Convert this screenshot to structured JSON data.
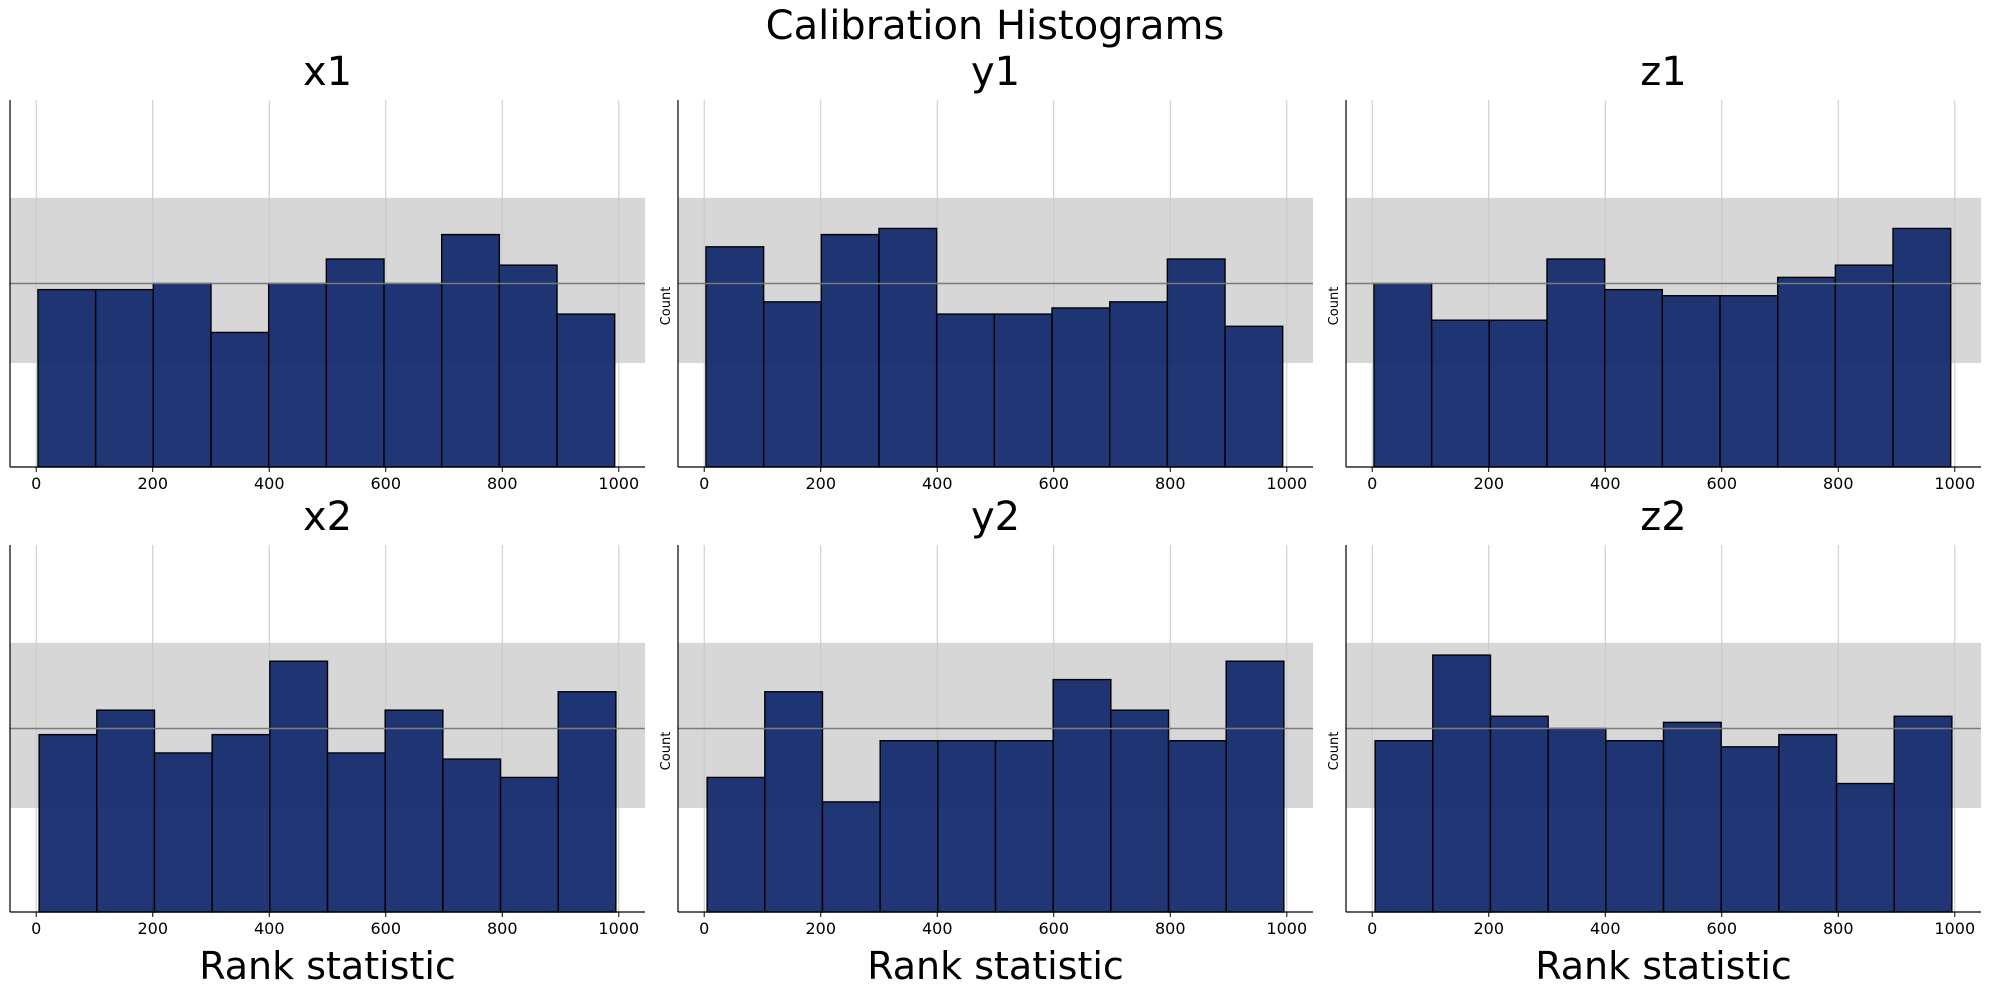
{
  "figure": {
    "title": "Calibration Histograms"
  },
  "chart_data": [
    {
      "type": "bar",
      "title": "x1",
      "xlabel": "",
      "ylabel": "",
      "x_ticks": [
        0,
        200,
        400,
        600,
        800,
        1000
      ],
      "xlim": [
        -45,
        1045
      ],
      "ylim": [
        0,
        60
      ],
      "bin_edges": [
        3,
        102,
        201,
        300,
        399,
        498,
        597,
        696,
        795,
        894,
        993
      ],
      "values": [
        29,
        29,
        30,
        22,
        30,
        34,
        30,
        38,
        33,
        25
      ],
      "expected_band": [
        17,
        44
      ],
      "expected_mean": 30,
      "grid": "x"
    },
    {
      "type": "bar",
      "title": "y1",
      "xlabel": "",
      "ylabel": "Count",
      "x_ticks": [
        0,
        200,
        400,
        600,
        800,
        1000
      ],
      "xlim": [
        -45,
        1045
      ],
      "ylim": [
        0,
        60
      ],
      "bin_edges": [
        3,
        102,
        201,
        300,
        399,
        498,
        597,
        696,
        795,
        894,
        993
      ],
      "values": [
        36,
        27,
        38,
        39,
        25,
        25,
        26,
        27,
        34,
        23
      ],
      "expected_band": [
        17,
        44
      ],
      "expected_mean": 30,
      "grid": "x"
    },
    {
      "type": "bar",
      "title": "z1",
      "xlabel": "",
      "ylabel": "Count",
      "x_ticks": [
        0,
        200,
        400,
        600,
        800,
        1000
      ],
      "xlim": [
        -45,
        1045
      ],
      "ylim": [
        0,
        60
      ],
      "bin_edges": [
        3,
        102,
        201,
        300,
        399,
        498,
        597,
        696,
        795,
        894,
        993
      ],
      "values": [
        30,
        24,
        24,
        34,
        29,
        28,
        28,
        31,
        33,
        39
      ],
      "expected_band": [
        17,
        44
      ],
      "expected_mean": 30,
      "grid": "x"
    },
    {
      "type": "bar",
      "title": "x2",
      "xlabel": "Rank statistic",
      "ylabel": "",
      "x_ticks": [
        0,
        200,
        400,
        600,
        800,
        1000
      ],
      "xlim": [
        -45,
        1045
      ],
      "ylim": [
        0,
        60
      ],
      "bin_edges": [
        5,
        104,
        203,
        302,
        401,
        500,
        599,
        698,
        797,
        896,
        995
      ],
      "values": [
        29,
        33,
        26,
        29,
        41,
        26,
        33,
        25,
        22,
        36
      ],
      "expected_band": [
        17,
        44
      ],
      "expected_mean": 30,
      "grid": "x"
    },
    {
      "type": "bar",
      "title": "y2",
      "xlabel": "Rank statistic",
      "ylabel": "Count",
      "x_ticks": [
        0,
        200,
        400,
        600,
        800,
        1000
      ],
      "xlim": [
        -45,
        1045
      ],
      "ylim": [
        0,
        60
      ],
      "bin_edges": [
        5,
        104,
        203,
        302,
        401,
        500,
        599,
        698,
        797,
        896,
        995
      ],
      "values": [
        22,
        36,
        18,
        28,
        28,
        28,
        38,
        33,
        28,
        41
      ],
      "expected_band": [
        17,
        44
      ],
      "expected_mean": 30,
      "grid": "x"
    },
    {
      "type": "bar",
      "title": "z2",
      "xlabel": "Rank statistic",
      "ylabel": "Count",
      "x_ticks": [
        0,
        200,
        400,
        600,
        800,
        1000
      ],
      "xlim": [
        -45,
        1045
      ],
      "ylim": [
        0,
        60
      ],
      "bin_edges": [
        5,
        104,
        203,
        302,
        401,
        500,
        599,
        698,
        797,
        896,
        995
      ],
      "values": [
        28,
        42,
        32,
        30,
        28,
        31,
        27,
        29,
        21,
        32
      ],
      "expected_band": [
        17,
        44
      ],
      "expected_mean": 30,
      "grid": "x"
    }
  ],
  "colors": {
    "bar_fill": "#152c6e",
    "bar_edge": "#000000",
    "band": "#d7d7d7",
    "mean_line": "#7a7a7a",
    "grid": "#c8c8c8"
  }
}
